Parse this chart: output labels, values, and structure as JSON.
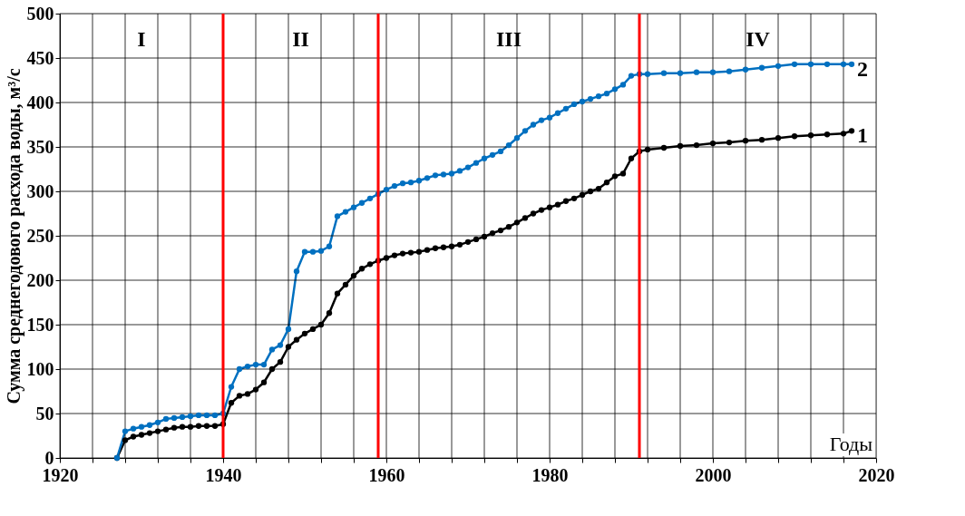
{
  "chart_data": {
    "type": "line",
    "xlabel": "Годы",
    "ylabel": "Сумма среднегодового расхода воды, м³/с",
    "x": [
      1927,
      1928,
      1929,
      1930,
      1931,
      1932,
      1933,
      1934,
      1935,
      1936,
      1937,
      1938,
      1939,
      1940,
      1941,
      1942,
      1943,
      1944,
      1945,
      1946,
      1947,
      1948,
      1949,
      1950,
      1951,
      1952,
      1953,
      1954,
      1955,
      1956,
      1957,
      1958,
      1959,
      1960,
      1961,
      1962,
      1963,
      1964,
      1965,
      1966,
      1967,
      1968,
      1969,
      1970,
      1971,
      1972,
      1973,
      1974,
      1975,
      1976,
      1977,
      1978,
      1979,
      1980,
      1981,
      1982,
      1983,
      1984,
      1985,
      1986,
      1987,
      1988,
      1989,
      1990,
      1991,
      1992,
      1994,
      1996,
      1998,
      2000,
      2002,
      2004,
      2006,
      2008,
      2010,
      2012,
      2014,
      2016,
      2017
    ],
    "series": [
      {
        "name": "1",
        "color": "#000000",
        "values": [
          0,
          20,
          24,
          26,
          28,
          30,
          32,
          34,
          35,
          35,
          36,
          36,
          36,
          38,
          62,
          70,
          72,
          77,
          85,
          100,
          108,
          125,
          133,
          140,
          145,
          150,
          163,
          185,
          195,
          205,
          213,
          218,
          222,
          225,
          228,
          230,
          231,
          232,
          234,
          236,
          237,
          238,
          240,
          243,
          246,
          249,
          253,
          256,
          260,
          265,
          270,
          275,
          279,
          282,
          285,
          289,
          292,
          296,
          300,
          303,
          310,
          317,
          320,
          337,
          345,
          347,
          349,
          351,
          352,
          354,
          355,
          357,
          358,
          360,
          362,
          363,
          364,
          365,
          368
        ]
      },
      {
        "name": "2",
        "color": "#0070c0",
        "values": [
          0,
          30,
          33,
          35,
          37,
          40,
          44,
          45,
          46,
          47,
          48,
          48,
          48,
          50,
          80,
          100,
          103,
          105,
          105,
          122,
          127,
          145,
          210,
          232,
          232,
          233,
          238,
          272,
          277,
          282,
          287,
          292,
          297,
          302,
          306,
          309,
          310,
          312,
          315,
          318,
          319,
          320,
          323,
          327,
          332,
          337,
          341,
          345,
          352,
          360,
          368,
          375,
          380,
          383,
          388,
          393,
          398,
          401,
          404,
          407,
          410,
          415,
          420,
          430,
          432,
          432,
          433,
          433,
          434,
          434,
          435,
          437,
          439,
          441,
          443,
          443,
          443,
          443,
          443
        ]
      }
    ],
    "xlim": [
      1920,
      2020
    ],
    "xticks": [
      1920,
      {
        "value": 1924,
        "label": null
      },
      {
        "value": 1928,
        "label": null
      },
      {
        "value": 1932,
        "label": null
      },
      {
        "value": 1936,
        "label": null
      },
      1940,
      {
        "value": 1944,
        "label": null
      },
      {
        "value": 1948,
        "label": null
      },
      {
        "value": 1952,
        "label": null
      },
      {
        "value": 1956,
        "label": null
      },
      1960,
      {
        "value": 1964,
        "label": null
      },
      {
        "value": 1968,
        "label": null
      },
      {
        "value": 1972,
        "label": null
      },
      {
        "value": 1976,
        "label": null
      },
      1980,
      {
        "value": 1984,
        "label": null
      },
      {
        "value": 1988,
        "label": null
      },
      {
        "value": 1992,
        "label": null
      },
      {
        "value": 1996,
        "label": null
      },
      2000,
      {
        "value": 2004,
        "label": null
      },
      {
        "value": 2008,
        "label": null
      },
      {
        "value": 2012,
        "label": null
      },
      {
        "value": 2016,
        "label": null
      },
      2020
    ],
    "ylim": [
      0,
      500
    ],
    "yticks": [
      0,
      50,
      100,
      150,
      200,
      250,
      300,
      350,
      400,
      450,
      500
    ],
    "ref_lines": [
      {
        "axis": "x",
        "value": 1940,
        "color": "#ff0000"
      },
      {
        "axis": "x",
        "value": 1959,
        "color": "#ff0000"
      },
      {
        "axis": "x",
        "value": 1991,
        "color": "#ff0000"
      }
    ],
    "annotations": [
      "I",
      "II",
      "III",
      "IV"
    ],
    "grid": true,
    "legend": false,
    "marker": "circle",
    "line_style": "solid"
  }
}
